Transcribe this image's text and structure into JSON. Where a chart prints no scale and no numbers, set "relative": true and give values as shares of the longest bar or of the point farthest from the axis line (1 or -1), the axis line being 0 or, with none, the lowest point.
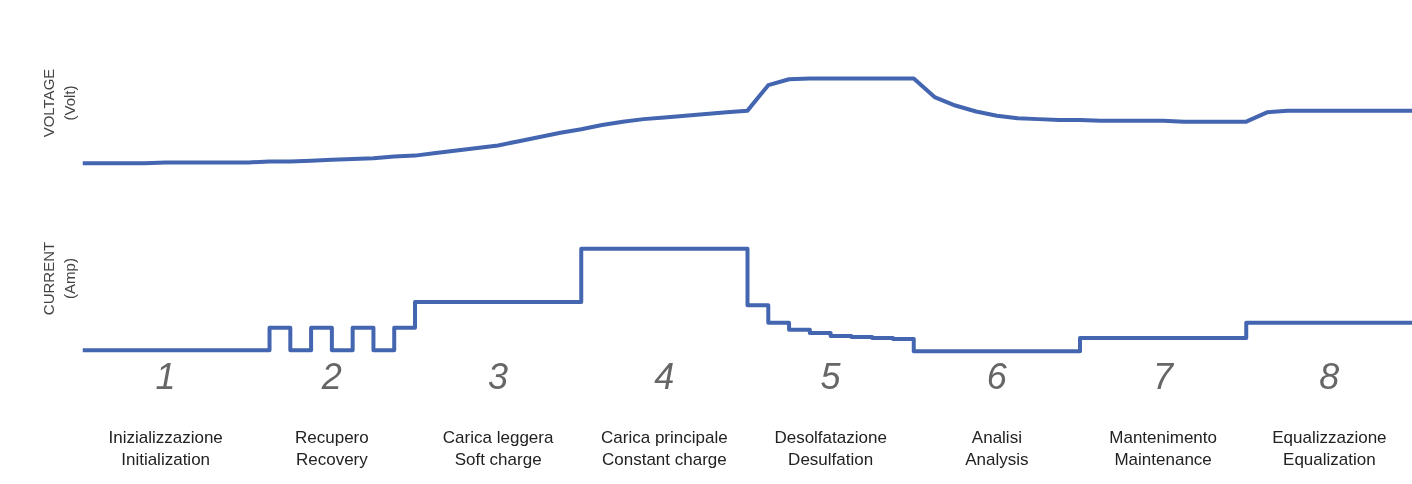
{
  "chart_data": [
    {
      "type": "line",
      "ylabel": "VOLTAGE\n(Volt)",
      "relative": true,
      "tick_labels": false,
      "grid": false,
      "marker": "none",
      "line_style": "solid",
      "categories": [
        null,
        null,
        null,
        null,
        "1",
        null,
        null,
        null,
        null,
        null,
        null,
        null,
        "2",
        null,
        null,
        null,
        null,
        null,
        null,
        null,
        "3",
        null,
        null,
        null,
        null,
        null,
        null,
        null,
        "4",
        null,
        null,
        null,
        null,
        null,
        null,
        null,
        "5",
        null,
        null,
        null,
        null,
        null,
        null,
        null,
        "6",
        null,
        null,
        null,
        null,
        null,
        null,
        null,
        "7",
        null,
        null,
        null,
        null,
        null,
        null,
        null,
        "8",
        null,
        null,
        null,
        null
      ],
      "series": [
        {
          "color": "#4466b0",
          "values": [
            0,
            0,
            0,
            0,
            0.01,
            0.01,
            0.01,
            0.01,
            0.01,
            0.02,
            0.02,
            0.03,
            0.04,
            0.05,
            0.06,
            0.08,
            0.09,
            0.12,
            0.15,
            0.18,
            0.21,
            0.26,
            0.31,
            0.36,
            0.4,
            0.45,
            0.49,
            0.52,
            0.54,
            0.56,
            0.58,
            0.6,
            0.62,
            0.92,
            0.99,
            1,
            1,
            1,
            1,
            1,
            1,
            0.78,
            0.68,
            0.61,
            0.56,
            0.53,
            0.52,
            0.51,
            0.51,
            0.5,
            0.5,
            0.5,
            0.5,
            0.49,
            0.49,
            0.49,
            0.49,
            0.6,
            0.62,
            0.62,
            0.62,
            0.62,
            0.62,
            0.62,
            0.62
          ]
        }
      ]
    },
    {
      "type": "step",
      "ylabel": "CURRENT\n(Amp)",
      "relative": true,
      "tick_labels": "x",
      "grid": false,
      "marker": "none",
      "line_style": "solid",
      "categories": [
        null,
        null,
        null,
        null,
        "1",
        null,
        null,
        null,
        null,
        null,
        null,
        null,
        "2",
        null,
        null,
        null,
        null,
        null,
        null,
        null,
        "3",
        null,
        null,
        null,
        null,
        null,
        null,
        null,
        "4",
        null,
        null,
        null,
        null,
        null,
        null,
        null,
        "5",
        null,
        null,
        null,
        null,
        null,
        null,
        null,
        "6",
        null,
        null,
        null,
        null,
        null,
        null,
        null,
        "7",
        null,
        null,
        null,
        null,
        null,
        null,
        null,
        "8",
        null,
        null,
        null,
        null
      ],
      "series": [
        {
          "color": "#4466b0",
          "values": [
            0.01,
            0.01,
            0.01,
            0.01,
            0.01,
            0.01,
            0.01,
            0.01,
            0.01,
            0.23,
            0.01,
            0.23,
            0.01,
            0.23,
            0.01,
            0.23,
            0.48,
            0.48,
            0.48,
            0.48,
            0.48,
            0.48,
            0.48,
            0.48,
            1,
            1,
            1,
            1,
            1,
            1,
            1,
            1,
            0.45,
            0.28,
            0.21,
            0.18,
            0.15,
            0.14,
            0.13,
            0.12,
            0,
            0,
            0,
            0,
            0,
            0,
            0,
            0,
            0.13,
            0.13,
            0.13,
            0.13,
            0.13,
            0.13,
            0.13,
            0.13,
            0.28,
            0.28,
            0.28,
            0.28,
            0.28,
            0.28,
            0.28,
            0.28,
            0.28
          ]
        }
      ]
    },
    {
      "type": "other",
      "annotations": [
        "Inizializzazione\nInitialization",
        "Recupero\nRecovery",
        "Carica leggera\nSoft charge",
        "Carica principale\nConstant charge",
        "Desolfatazione\nDesulfation",
        "Analisi\nAnalysis",
        "Mantenimento\nMaintenance",
        "Equalizzazione\nEqualization"
      ]
    }
  ]
}
